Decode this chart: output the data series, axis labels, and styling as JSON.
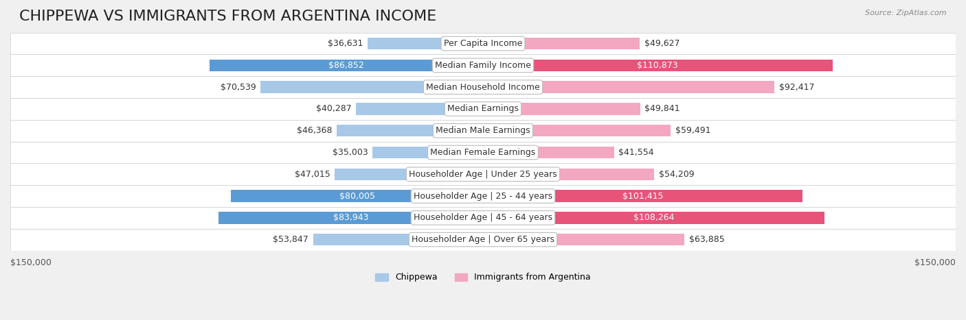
{
  "title": "CHIPPEWA VS IMMIGRANTS FROM ARGENTINA INCOME",
  "source": "Source: ZipAtlas.com",
  "categories": [
    "Per Capita Income",
    "Median Family Income",
    "Median Household Income",
    "Median Earnings",
    "Median Male Earnings",
    "Median Female Earnings",
    "Householder Age | Under 25 years",
    "Householder Age | 25 - 44 years",
    "Householder Age | 45 - 64 years",
    "Householder Age | Over 65 years"
  ],
  "chippewa_values": [
    36631,
    86852,
    70539,
    40287,
    46368,
    35003,
    47015,
    80005,
    83943,
    53847
  ],
  "argentina_values": [
    49627,
    110873,
    92417,
    49841,
    59491,
    41554,
    54209,
    101415,
    108264,
    63885
  ],
  "chippewa_labels": [
    "$36,631",
    "$86,852",
    "$70,539",
    "$40,287",
    "$46,368",
    "$35,003",
    "$47,015",
    "$80,005",
    "$83,943",
    "$53,847"
  ],
  "argentina_labels": [
    "$49,627",
    "$110,873",
    "$92,417",
    "$49,841",
    "$59,491",
    "$41,554",
    "$54,209",
    "$101,415",
    "$108,264",
    "$63,885"
  ],
  "chippewa_color_light": "#a8c8e8",
  "chippewa_color_dark": "#5b9bd5",
  "argentina_color_light": "#f4a7c0",
  "argentina_color_dark": "#e8537a",
  "max_value": 150000,
  "x_label_left": "$150,000",
  "x_label_right": "$150,000",
  "background_color": "#f0f0f0",
  "row_bg_color": "#f8f8f8",
  "title_fontsize": 16,
  "label_fontsize": 9,
  "category_fontsize": 9
}
